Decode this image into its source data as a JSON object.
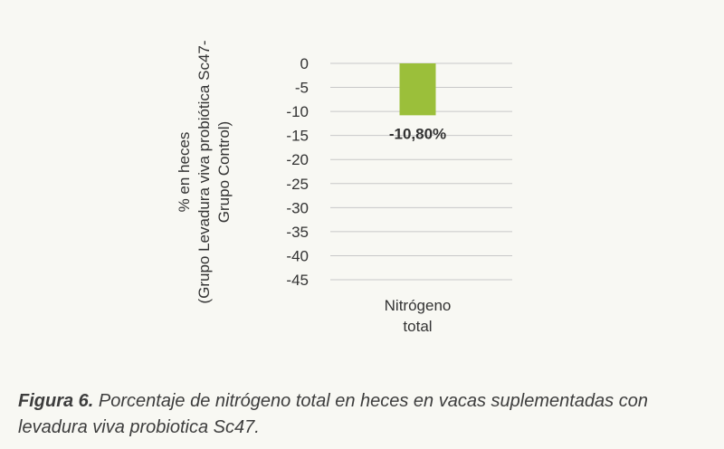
{
  "chart_data": {
    "type": "bar",
    "categories": [
      "Nitrógeno total"
    ],
    "category_lines": [
      [
        "Nitrógeno",
        "total"
      ]
    ],
    "values": [
      -10.8
    ],
    "data_labels": [
      "-10,80%"
    ],
    "ylabel_lines": [
      "% en heces",
      "(Grupo Levadura viva probiótica Sc47-",
      "Grupo Control)"
    ],
    "ylim": [
      -45,
      0
    ],
    "yticks": [
      0,
      -5,
      -10,
      -15,
      -20,
      -25,
      -30,
      -35,
      -40,
      -45
    ],
    "ytick_labels": [
      "0",
      "-5",
      "-10",
      "-15",
      "-20",
      "-25",
      "-30",
      "-35",
      "-40",
      "-45"
    ],
    "grid": true,
    "colors": {
      "bar": "#9bbf3a",
      "grid": "#c8c8c8",
      "text": "#333333"
    }
  },
  "caption": {
    "label": "Figura 6.",
    "text": " Porcentaje de nitrógeno total en heces en vacas suplementadas con levadura viva probiotica Sc47."
  }
}
